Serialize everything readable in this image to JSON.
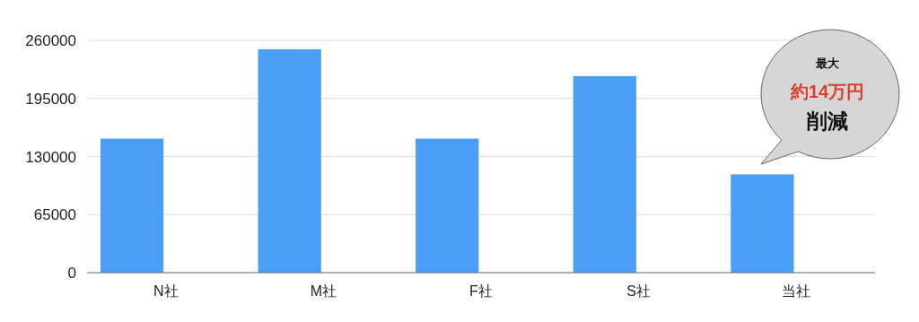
{
  "chart_data": {
    "type": "bar",
    "categories": [
      "N社",
      "M社",
      "F社",
      "S社",
      "当社"
    ],
    "values": [
      150000,
      250000,
      150000,
      220000,
      110000
    ],
    "color": "#4a9ef5",
    "ylim": [
      0,
      260000
    ],
    "yticks": [
      0,
      65000,
      130000,
      195000,
      260000
    ],
    "grid": "y",
    "annotations": [
      "最大",
      "約14万円",
      "削減"
    ]
  }
}
